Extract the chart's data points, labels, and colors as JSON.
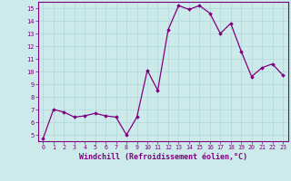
{
  "x": [
    0,
    1,
    2,
    3,
    4,
    5,
    6,
    7,
    8,
    9,
    10,
    11,
    12,
    13,
    14,
    15,
    16,
    17,
    18,
    19,
    20,
    21,
    22,
    23
  ],
  "y": [
    4.7,
    7.0,
    6.8,
    6.4,
    6.5,
    6.7,
    6.5,
    6.4,
    5.0,
    6.4,
    10.1,
    8.5,
    13.3,
    15.2,
    14.9,
    15.2,
    14.6,
    13.0,
    13.8,
    11.6,
    9.6,
    10.3,
    10.6,
    9.7
  ],
  "line_color": "#800080",
  "marker": "D",
  "marker_size": 1.8,
  "line_width": 0.9,
  "xlabel": "Windchill (Refroidissement éolien,°C)",
  "xlabel_fontsize": 6.0,
  "ylim": [
    4.5,
    15.5
  ],
  "xlim": [
    -0.5,
    23.5
  ],
  "yticks": [
    5,
    6,
    7,
    8,
    9,
    10,
    11,
    12,
    13,
    14,
    15
  ],
  "xticks": [
    0,
    1,
    2,
    3,
    4,
    5,
    6,
    7,
    8,
    9,
    10,
    11,
    12,
    13,
    14,
    15,
    16,
    17,
    18,
    19,
    20,
    21,
    22,
    23
  ],
  "grid_color": "#b0d8d8",
  "bg_color": "#cceaea",
  "tick_label_color": "#800080",
  "axis_color": "#800080"
}
